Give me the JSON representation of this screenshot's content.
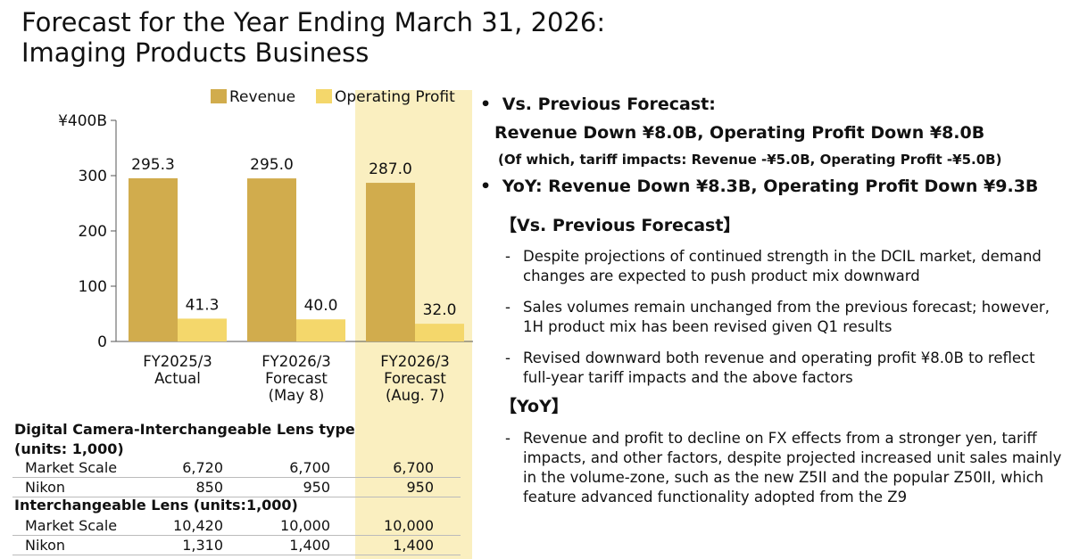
{
  "title": {
    "line1": "Forecast for the Year Ending March 31, 2026:",
    "line2": "Imaging Products Business"
  },
  "chart_data": {
    "type": "bar",
    "categories": [
      [
        "FY2025/3",
        "Actual"
      ],
      [
        "FY2026/3",
        "Forecast",
        "(May 8)"
      ],
      [
        "FY2026/3",
        "Forecast",
        "(Aug. 7)"
      ]
    ],
    "series": [
      {
        "name": "Revenue",
        "values": [
          295.3,
          295.0,
          287.0
        ],
        "labels": [
          "295.3",
          "295.0",
          "287.0"
        ],
        "color": "#d1ac4d"
      },
      {
        "name": "Operating Profit",
        "values": [
          41.3,
          40.0,
          32.0
        ],
        "labels": [
          "41.3",
          "40.0",
          "32.0"
        ],
        "color": "#f4d76b"
      }
    ],
    "yticks": [
      "¥400B",
      "300",
      "200",
      "100",
      "0"
    ],
    "ytick_values": [
      400,
      300,
      200,
      100,
      0
    ],
    "ylim": [
      0,
      400
    ],
    "legend": "top",
    "highlight_category": 2,
    "highlight_color": "#faefc0"
  },
  "tables": [
    {
      "heading1": "Digital Camera-Interchangeable Lens type",
      "heading2": "(units: 1,000)",
      "rows": [
        {
          "label": "Market Scale",
          "v": [
            "6,720",
            "6,700",
            "6,700"
          ]
        },
        {
          "label": "Nikon",
          "v": [
            "850",
            "950",
            "950"
          ]
        }
      ]
    },
    {
      "heading1": "Interchangeable Lens (units:1,000)",
      "rows": [
        {
          "label": "Market Scale",
          "v": [
            "10,420",
            "10,000",
            "10,000"
          ]
        },
        {
          "label": "Nikon",
          "v": [
            "1,310",
            "1,400",
            "1,400"
          ]
        }
      ]
    }
  ],
  "commentary": {
    "bullet1": "Vs. Previous Forecast:",
    "bullet1_line2": "Revenue Down ¥8.0B, Operating Profit Down ¥8.0B",
    "bullet1_note": "(Of which, tariff impacts: Revenue -¥5.0B, Operating Profit -¥5.0B)",
    "bullet2": "YoY: Revenue Down ¥8.3B, Operating Profit Down ¥9.3B",
    "section1": "【Vs. Previous Forecast】",
    "section1_items": [
      "Despite projections of continued strength in the DCIL market, demand changes are expected to push product mix downward",
      "Sales volumes remain unchanged from the previous forecast; however, 1H product mix has been revised given Q1 results",
      "Revised downward both revenue and operating profit ¥8.0B to reflect full-year tariff impacts and the above factors"
    ],
    "section2": "【YoY】",
    "section2_items": [
      "Revenue and profit to decline on FX effects from a stronger yen, tariff impacts, and other factors, despite projected increased unit sales mainly in the volume-zone, such as the new Z5II and the popular Z50II, which feature advanced functionality adopted from the Z9"
    ],
    "dash": "-",
    "bullet_char": "•"
  }
}
